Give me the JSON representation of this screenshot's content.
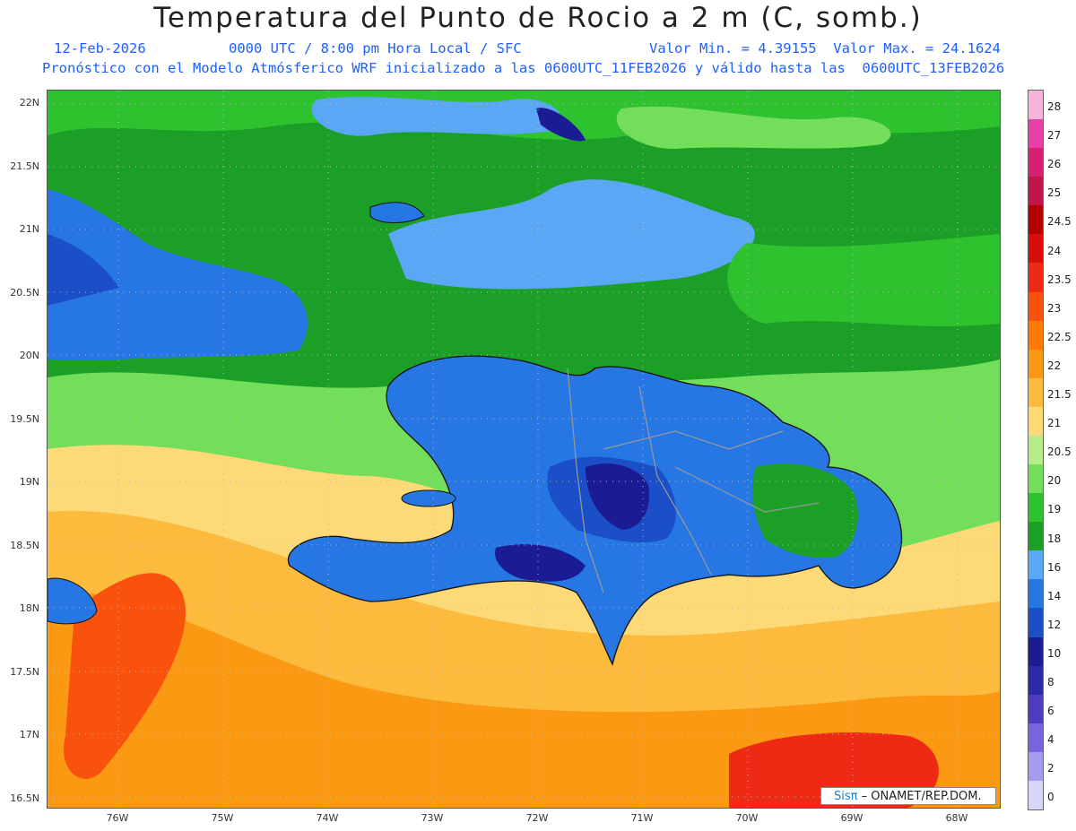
{
  "title": "Temperatura del Punto de Rocio a 2 m (C, somb.)",
  "subtitle_date": "12-Feb-2026",
  "subtitle_time": "0000 UTC / 8:00 pm Hora Local / SFC",
  "subtitle_minmax": "Valor Min. = 4.39155  Valor Max. = 24.1624",
  "subtitle_model": "Pronóstico con el Modelo Atmósferico WRF inicializado a las 0600UTC_11FEB2026 y válido hasta las  0600UTC_13FEB2026",
  "lat_labels": [
    "22N",
    "21.5N",
    "21N",
    "20.5N",
    "20N",
    "19.5N",
    "19N",
    "18.5N",
    "18N",
    "17.5N",
    "17N",
    "16.5N"
  ],
  "lon_labels": [
    "76W",
    "75W",
    "74W",
    "73W",
    "72W",
    "71W",
    "70W",
    "69W",
    "68W"
  ],
  "colorbar": {
    "labels": [
      "28",
      "27",
      "26",
      "25",
      "24.5",
      "24",
      "23.5",
      "23",
      "22.5",
      "22",
      "21.5",
      "21",
      "20.5",
      "20",
      "19",
      "18",
      "16",
      "14",
      "12",
      "10",
      "8",
      "6",
      "4",
      "2",
      "0"
    ],
    "colors": [
      "#f7b3d9",
      "#ea3fa8",
      "#d82070",
      "#c2154a",
      "#b50000",
      "#d90c0c",
      "#ee2a14",
      "#f8520d",
      "#ff7a00",
      "#fb9a12",
      "#fcbb3c",
      "#fed977",
      "#b6ec8a",
      "#72de5a",
      "#2fc22f",
      "#1c9f27",
      "#5aa7f5",
      "#2677e3",
      "#1a4fc8",
      "#1b1b94",
      "#2a2aa8",
      "#4a3dc0",
      "#7865dc",
      "#a49cf0",
      "#d7d6f6"
    ]
  },
  "credit_brand": "Sisπ",
  "credit_text": "– ONAMET/REP.DOM.",
  "colors": {
    "ocean_green": "#1c9f27",
    "light_green": "#72de5a",
    "blue": "#2677e3",
    "dark_blue": "#1b1b94",
    "orange": "#fb9a12",
    "red_orange": "#f8520d"
  }
}
